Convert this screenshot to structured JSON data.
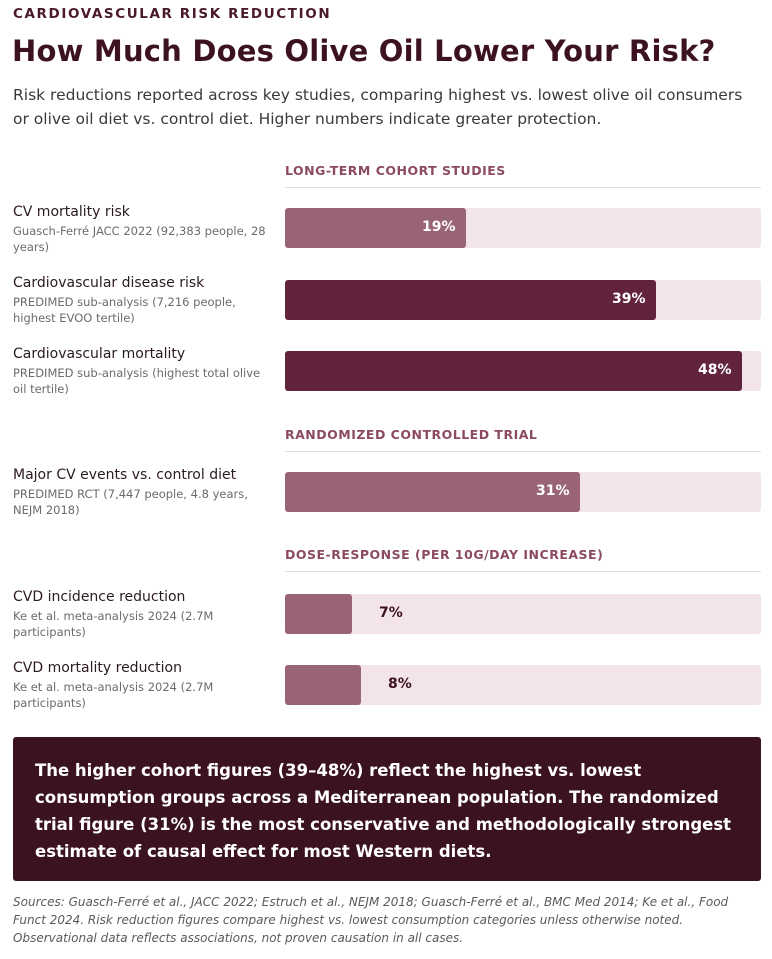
{
  "header": {
    "eyebrow": "CARDIOVASCULAR RISK REDUCTION",
    "title": "How Much Does Olive Oil Lower Your Risk?",
    "subtitle": "Risk reductions reported across key studies, comparing highest vs. lowest olive oil consumers or olive oil diet vs. control diet. Higher numbers indicate greater protection."
  },
  "colors": {
    "light_bar": "#9a6478",
    "dark_bar": "#62243d",
    "track": "#f3e4e9"
  },
  "chart_data": {
    "type": "bar",
    "orientation": "horizontal",
    "xlim": [
      0,
      50
    ],
    "unit": "%",
    "sections": [
      {
        "heading": "LONG-TERM COHORT STUDIES",
        "rows": [
          {
            "label": "CV mortality risk",
            "source": "Guasch-Ferré JACC 2022 (92,383 people, 28 years)",
            "value": 19,
            "value_label": "19%",
            "shade": "light"
          },
          {
            "label": "Cardiovascular disease risk",
            "source": "PREDIMED sub-analysis (7,216 people, highest EVOO tertile)",
            "value": 39,
            "value_label": "39%",
            "shade": "dark"
          },
          {
            "label": "Cardiovascular mortality",
            "source": "PREDIMED sub-analysis (highest total olive oil tertile)",
            "value": 48,
            "value_label": "48%",
            "shade": "dark"
          }
        ]
      },
      {
        "heading": "RANDOMIZED CONTROLLED TRIAL",
        "rows": [
          {
            "label": "Major CV events vs. control diet",
            "source": "PREDIMED RCT (7,447 people, 4.8 years, NEJM 2018)",
            "value": 31,
            "value_label": "31%",
            "shade": "light"
          }
        ]
      },
      {
        "heading": "DOSE-RESPONSE (PER 10G/DAY INCREASE)",
        "rows": [
          {
            "label": "CVD incidence reduction",
            "source": "Ke et al. meta-analysis 2024 (2.7M participants)",
            "value": 7,
            "value_label": "7%",
            "shade": "light"
          },
          {
            "label": "CVD mortality reduction",
            "source": "Ke et al. meta-analysis 2024 (2.7M participants)",
            "value": 8,
            "value_label": "8%",
            "shade": "light"
          }
        ]
      }
    ]
  },
  "callout": "The higher cohort figures (39–48%) reflect the highest vs. lowest consumption groups across a Mediterranean population. The randomized trial figure (31%) is the most conservative and methodologically strongest estimate of causal effect for most Western diets.",
  "sources": "Sources: Guasch-Ferré et al., JACC 2022; Estruch et al., NEJM 2018; Guasch-Ferré et al., BMC Med 2014; Ke et al., Food Funct 2024. Risk reduction figures compare highest vs. lowest consumption categories unless otherwise noted. Observational data reflects associations, not proven causation in all cases."
}
